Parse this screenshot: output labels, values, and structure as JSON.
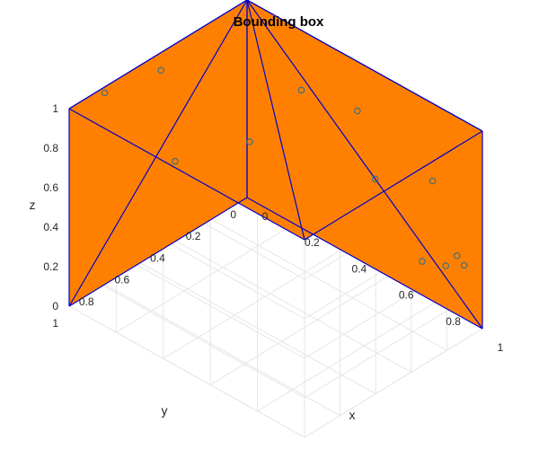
{
  "chart_data": {
    "type": "scatter",
    "title": "Bounding box",
    "xlabel": "x",
    "ylabel": "y",
    "zlabel": "z",
    "xlim": [
      0,
      1
    ],
    "ylim": [
      0,
      1
    ],
    "zlim": [
      0,
      1
    ],
    "x_ticks": [
      "0",
      "0.2",
      "0.4",
      "0.6",
      "0.8",
      "1"
    ],
    "y_ticks": [
      "0",
      "0.2",
      "0.4",
      "0.6",
      "0.8",
      "1"
    ],
    "z_ticks": [
      "0",
      "0.2",
      "0.4",
      "0.6",
      "0.8",
      "1"
    ],
    "grid": true,
    "box": {
      "min": [
        0,
        0,
        0
      ],
      "max": [
        1,
        1,
        1
      ],
      "face_color": "#ff8000",
      "edge_color": "#0000cc"
    },
    "series": [
      {
        "marker": "circle",
        "marker_color": "#2f6f8f",
        "points": [
          {
            "x": 0.42,
            "y": 0.96,
            "z": 0.99
          },
          {
            "x": 0.0,
            "y": 0.8,
            "z": 0.97
          },
          {
            "x": 0.05,
            "y": 0.55,
            "z": 0.98
          },
          {
            "x": 0.45,
            "y": 0.58,
            "z": 0.9
          },
          {
            "x": 0.42,
            "y": 0.25,
            "z": 0.96
          },
          {
            "x": 0.62,
            "y": 0.2,
            "z": 0.96
          },
          {
            "x": 0.62,
            "y": 0.1,
            "z": 0.56
          },
          {
            "x": 0.88,
            "y": 0.18,
            "z": 0.36
          },
          {
            "x": 0.92,
            "y": 0.1,
            "z": 0.32
          },
          {
            "x": 0.93,
            "y": 0.05,
            "z": 0.35
          },
          {
            "x": 0.93,
            "y": 0.01,
            "z": 0.28
          },
          {
            "x": 0.97,
            "y": 0.24,
            "z": 0.86
          }
        ]
      }
    ]
  }
}
